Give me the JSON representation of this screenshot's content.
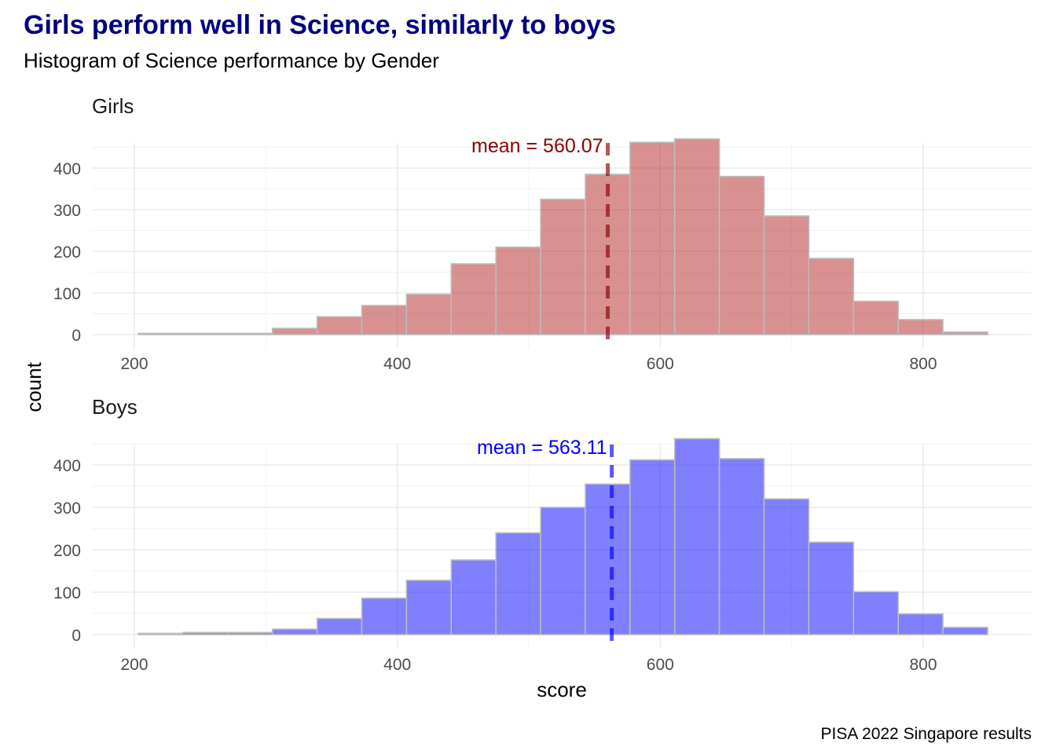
{
  "chart_data": {
    "type": "bar",
    "title": "Girls perform well in Science, similarly to boys",
    "subtitle": "Histogram of Science performance by Gender",
    "xlabel": "score",
    "ylabel": "count",
    "caption": "PISA 2022 Singapore results",
    "xlim": [
      170,
      870
    ],
    "x_ticks": [
      "200",
      "400",
      "600",
      "800"
    ],
    "y_ticks": [
      "0",
      "100",
      "200",
      "300",
      "400"
    ],
    "grid": true,
    "bin_edges": [
      203,
      237,
      271,
      305,
      339,
      373,
      407,
      441,
      475,
      509,
      543,
      577,
      611,
      645,
      679,
      713,
      747,
      781,
      815
    ],
    "facets": [
      {
        "label": "Girls",
        "color": "#b22222",
        "mean_color": "#8b0000",
        "mean": 560.07,
        "mean_label": "mean = 560.07",
        "ylim": [
          0,
          450
        ],
        "values": [
          3,
          3,
          3,
          15,
          43,
          70,
          97,
          170,
          210,
          325,
          385,
          462,
          470,
          380,
          285,
          183,
          80,
          36,
          6
        ]
      },
      {
        "label": "Boys",
        "color": "#0000ff",
        "mean_color": "#0000ff",
        "mean": 563.11,
        "mean_label": "mean = 563.11",
        "ylim": [
          0,
          450
        ],
        "values": [
          3,
          5,
          5,
          13,
          38,
          86,
          128,
          176,
          240,
          300,
          355,
          412,
          462,
          415,
          320,
          218,
          101,
          49,
          17
        ]
      }
    ]
  }
}
